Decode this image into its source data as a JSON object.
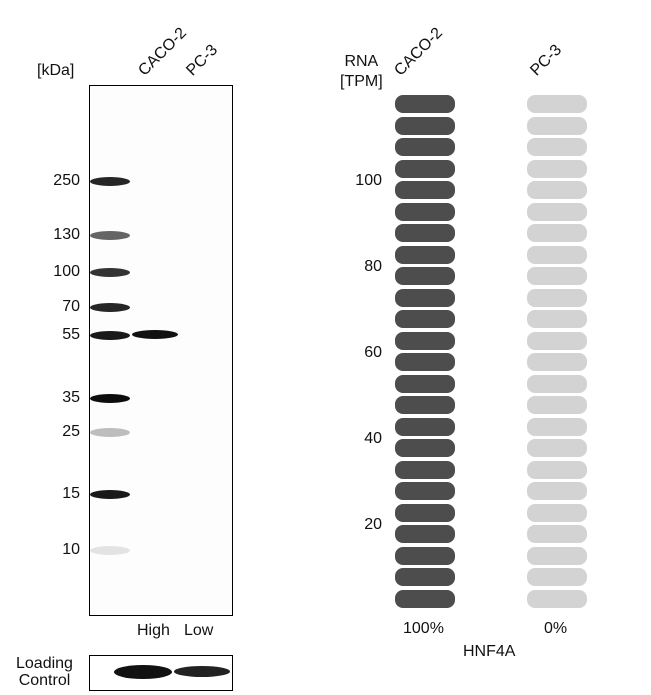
{
  "blot": {
    "unit_label": "[kDa]",
    "lanes": [
      "CACO-2",
      "PC-3"
    ],
    "markers": [
      "250",
      "130",
      "100",
      "70",
      "55",
      "35",
      "25",
      "15",
      "10"
    ],
    "lane_levels": [
      "High",
      "Low"
    ],
    "loading_control_label": [
      "Loading",
      "Control"
    ]
  },
  "chart_data": {
    "type": "bar",
    "ylabel": [
      "RNA",
      "[TPM]"
    ],
    "y_ticks": [
      "100",
      "80",
      "60",
      "40",
      "20"
    ],
    "categories": [
      "CACO-2",
      "PC-3"
    ],
    "values_percent": [
      100,
      0
    ],
    "value_labels": [
      "100%",
      "0%"
    ],
    "gene": "HNF4A",
    "colors": {
      "high": "#4d4d4d",
      "low": "#d3d3d3"
    }
  }
}
